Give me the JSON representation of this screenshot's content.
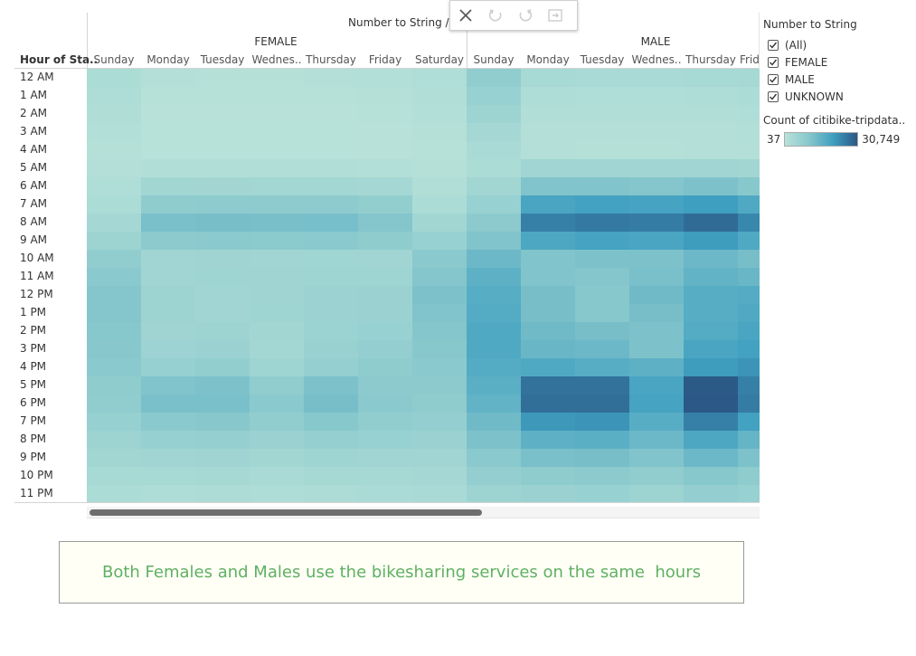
{
  "chart_data": {
    "type": "heatmap",
    "title": "Number to String / ...",
    "row_header": "Hour of Sta..",
    "groups": [
      "FEMALE",
      "MALE"
    ],
    "group_day_labels": {
      "FEMALE": [
        "Sunday",
        "Monday",
        "Tuesday",
        "Wednes..",
        "Thursday",
        "Friday",
        "Saturday"
      ],
      "MALE": [
        "Sunday",
        "Monday",
        "Tuesday",
        "Wednes..",
        "Thursday",
        "Frid"
      ]
    },
    "hours": [
      "12 AM",
      "1 AM",
      "2 AM",
      "3 AM",
      "4 AM",
      "5 AM",
      "6 AM",
      "7 AM",
      "8 AM",
      "9 AM",
      "10 AM",
      "11 AM",
      "12 PM",
      "1 PM",
      "2 PM",
      "3 PM",
      "4 PM",
      "5 PM",
      "6 PM",
      "7 PM",
      "8 PM",
      "9 PM",
      "10 PM",
      "11 PM"
    ],
    "color_range": [
      37,
      30749
    ],
    "values": {
      "FEMALE": [
        [
          2500,
          1000,
          800,
          800,
          1000,
          1200,
          1800
        ],
        [
          2000,
          500,
          400,
          400,
          500,
          700,
          1500
        ],
        [
          1600,
          300,
          250,
          250,
          300,
          500,
          1200
        ],
        [
          1200,
          200,
          150,
          150,
          200,
          300,
          800
        ],
        [
          900,
          200,
          150,
          150,
          200,
          250,
          600
        ],
        [
          1000,
          1500,
          1400,
          1400,
          1400,
          1300,
          700
        ],
        [
          1800,
          4500,
          4400,
          4300,
          4300,
          3900,
          1500
        ],
        [
          2500,
          8500,
          8800,
          8600,
          8700,
          7600,
          2500
        ],
        [
          4000,
          12000,
          12500,
          12300,
          12400,
          10500,
          4500
        ],
        [
          5500,
          9000,
          9500,
          9300,
          9400,
          8500,
          6500
        ],
        [
          8000,
          5000,
          5200,
          5000,
          5100,
          5000,
          9500
        ],
        [
          9500,
          5000,
          5300,
          5200,
          5300,
          5300,
          10500
        ],
        [
          10500,
          5500,
          4800,
          5200,
          5800,
          6000,
          11500
        ],
        [
          10500,
          5500,
          4900,
          5300,
          5700,
          6000,
          11000
        ],
        [
          10000,
          5200,
          5500,
          4700,
          5900,
          6600,
          10500
        ],
        [
          9800,
          5600,
          6000,
          4300,
          6300,
          7500,
          10000
        ],
        [
          9500,
          7000,
          7600,
          5300,
          7300,
          8500,
          9500
        ],
        [
          8500,
          11000,
          11500,
          8000,
          11500,
          9000,
          9000
        ],
        [
          8000,
          12000,
          12000,
          9500,
          12500,
          9500,
          8500
        ],
        [
          7000,
          9500,
          9800,
          8000,
          10000,
          8000,
          7500
        ],
        [
          5500,
          7000,
          7200,
          6000,
          7300,
          6500,
          6000
        ],
        [
          4500,
          5000,
          5200,
          4500,
          5400,
          5000,
          5000
        ],
        [
          3500,
          3500,
          3600,
          3200,
          3700,
          3800,
          4000
        ],
        [
          2500,
          2000,
          2200,
          2000,
          2300,
          2700,
          3200
        ]
      ],
      "MALE": [
        [
          8000,
          3500,
          3200,
          3000,
          3500,
          3800
        ],
        [
          6500,
          2000,
          1800,
          1800,
          2000,
          2500
        ],
        [
          5500,
          1500,
          1400,
          1400,
          1500,
          1800
        ],
        [
          4000,
          1100,
          1000,
          1000,
          1100,
          1300
        ],
        [
          3000,
          1000,
          900,
          900,
          1000,
          1100
        ],
        [
          2500,
          5000,
          4800,
          4800,
          5000,
          4500
        ],
        [
          4500,
          11000,
          11000,
          10500,
          11500,
          10000
        ],
        [
          6500,
          19000,
          20000,
          19500,
          20500,
          18000
        ],
        [
          9000,
          25000,
          26000,
          25500,
          28000,
          24000
        ],
        [
          11000,
          18500,
          19500,
          19000,
          21000,
          18000
        ],
        [
          14000,
          11000,
          11500,
          11500,
          14000,
          12500
        ],
        [
          16000,
          11000,
          10500,
          12000,
          15500,
          14500
        ],
        [
          17000,
          12500,
          10000,
          13500,
          17000,
          17500
        ],
        [
          17500,
          12500,
          10000,
          12500,
          17000,
          18000
        ],
        [
          18000,
          13500,
          12500,
          11500,
          17500,
          19000
        ],
        [
          18000,
          14500,
          14000,
          11500,
          19000,
          20000
        ],
        [
          17500,
          18000,
          17000,
          16000,
          21000,
          22000
        ],
        [
          16500,
          27000,
          27000,
          19000,
          30500,
          25000
        ],
        [
          15500,
          27500,
          27500,
          19500,
          30749,
          25500
        ],
        [
          13500,
          21500,
          22000,
          17000,
          25000,
          20000
        ],
        [
          11500,
          16000,
          16500,
          14000,
          18500,
          15000
        ],
        [
          9500,
          12000,
          12500,
          11000,
          14000,
          11500
        ],
        [
          7500,
          8500,
          9000,
          8000,
          10000,
          8500
        ],
        [
          5500,
          6000,
          6500,
          5500,
          7500,
          6500
        ]
      ]
    },
    "legend_placement": "right"
  },
  "filter": {
    "title": "Number to String",
    "items": [
      {
        "label": "(All)",
        "checked": true
      },
      {
        "label": "FEMALE",
        "checked": true
      },
      {
        "label": "MALE",
        "checked": true
      },
      {
        "label": "UNKNOWN",
        "checked": true
      }
    ]
  },
  "color_legend": {
    "title": "Count of citibike-tripdata..",
    "min_label": "37",
    "max_label": "30,749",
    "colors": [
      "#b8e2d9",
      "#86c7cc",
      "#3f9fc0",
      "#2b5886"
    ]
  },
  "toolbar": {
    "icons": [
      "close-icon",
      "undo-icon",
      "redo-icon",
      "pause-updates-icon"
    ]
  },
  "caption": "Both Females and Males use the bikesharing services on the same  hours"
}
